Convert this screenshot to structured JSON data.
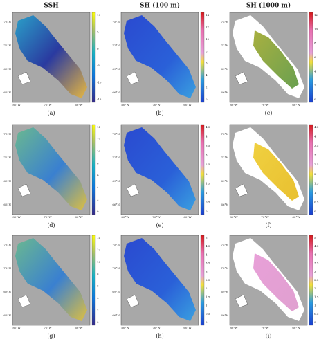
{
  "column_titles": [
    "SSH",
    "SH (100 m)",
    "SH (1000 m)"
  ],
  "lat_labels": [
    "75°N",
    "72°N",
    "69°N",
    "66°N"
  ],
  "lon_labels": [
    "80°W",
    "70°W",
    "60°W"
  ],
  "panels": [
    {
      "label": "(a)",
      "colorbar_ticks": [
        "10",
        "5",
        "0",
        "-5",
        "-10",
        "-15"
      ]
    },
    {
      "label": "(b)",
      "colorbar_ticks": [
        "14",
        "12",
        "10",
        "8",
        "6",
        "4",
        "2",
        "0"
      ]
    },
    {
      "label": "(c)",
      "colorbar_ticks": [
        "12",
        "10",
        "8",
        "6",
        "4",
        "2",
        "0"
      ]
    },
    {
      "label": "(d)",
      "colorbar_ticks": [
        "14",
        "12",
        "10",
        "8",
        "6",
        "4",
        "2",
        "0"
      ]
    },
    {
      "label": "(e)",
      "colorbar_ticks": [
        "4.5",
        "4",
        "3.5",
        "3",
        "2.5",
        "2",
        "1.5",
        "1",
        "0.5",
        "0"
      ]
    },
    {
      "label": "(f)",
      "colorbar_ticks": [
        "4.5",
        "4",
        "3.5",
        "3",
        "2.5",
        "2",
        "1.5",
        "1",
        "0.5",
        "0"
      ]
    },
    {
      "label": "(g)",
      "colorbar_ticks": [
        "14",
        "12",
        "10",
        "8",
        "6",
        "4",
        "2",
        "0"
      ]
    },
    {
      "label": "(h)",
      "colorbar_ticks": [
        "5",
        "4.5",
        "4",
        "3.5",
        "3",
        "2.5",
        "2",
        "1.5",
        "1",
        "0.5",
        "0"
      ]
    },
    {
      "label": "(i)",
      "colorbar_ticks": [
        "5",
        "4.5",
        "4",
        "3.5",
        "3",
        "2.5",
        "2",
        "1.5",
        "1",
        "0.5",
        "0"
      ]
    }
  ]
}
